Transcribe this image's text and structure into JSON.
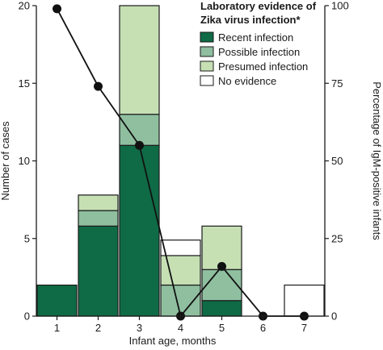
{
  "chart_data": {
    "type": "bar",
    "stacked": true,
    "categories": [
      "1",
      "2",
      "3",
      "4",
      "5",
      "6",
      "7"
    ],
    "x_values": [
      1,
      2,
      3,
      4,
      5,
      6,
      7
    ],
    "xlabel": "Infant age, months",
    "ylabel_left": "Number of cases",
    "ylabel_right": "Percentage of IgM-positive infants",
    "ylim_left": [
      0,
      20
    ],
    "yticks_left": [
      0,
      5,
      10,
      15,
      20
    ],
    "ylim_right": [
      0,
      100
    ],
    "yticks_right": [
      0,
      25,
      50,
      75,
      100
    ],
    "legend_title_lines": [
      "Laboratory evidence of",
      "Zika virus infection*"
    ],
    "legend_position": "top-right",
    "series": [
      {
        "name": "Recent infection",
        "color": "#0f6b45",
        "values": [
          2,
          5.8,
          11,
          0,
          1,
          0,
          0
        ]
      },
      {
        "name": "Possible infection",
        "color": "#8fbf9f",
        "values": [
          0,
          1,
          2,
          2,
          2,
          0,
          0
        ]
      },
      {
        "name": "Presumed infection",
        "color": "#c6e0b4",
        "values": [
          0,
          1,
          7,
          1.9,
          2.8,
          0,
          0
        ]
      },
      {
        "name": "No evidence",
        "color": "#ffffff",
        "values": [
          0,
          0,
          0,
          1,
          0,
          0,
          2
        ]
      }
    ],
    "line_series": {
      "axis": "right",
      "x": [
        1,
        2,
        3,
        4,
        5,
        6,
        7
      ],
      "values": [
        99,
        74,
        55,
        0,
        16,
        0,
        0
      ]
    }
  }
}
